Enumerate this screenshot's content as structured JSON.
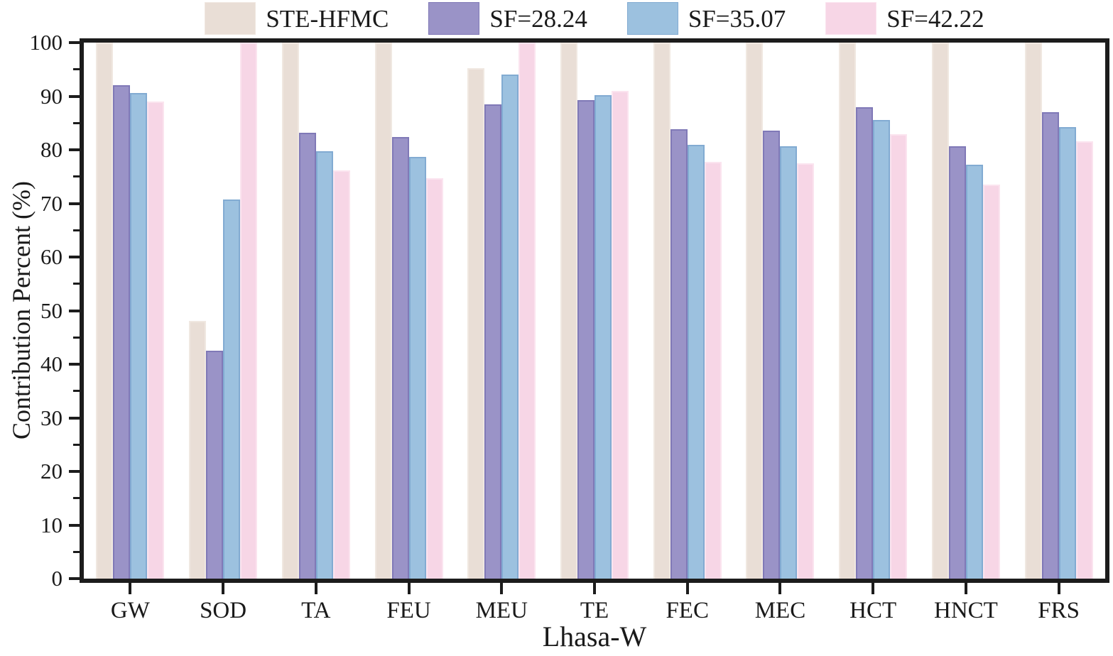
{
  "chart_data": {
    "type": "bar",
    "title": "",
    "xlabel": "Lhasa-W",
    "ylabel": "Contribution Percent (%)",
    "ylim": [
      0,
      100
    ],
    "ytick_major_step": 10,
    "ytick_minor_step": 5,
    "grid": false,
    "legend_position": "top",
    "frame_color": "#1c1c1c",
    "categories": [
      "GW",
      "SOD",
      "TA",
      "FEU",
      "MEU",
      "TE",
      "FEC",
      "MEC",
      "HCT",
      "HNCT",
      "FRS"
    ],
    "series": [
      {
        "name": "STE-HFMC",
        "fill": "#e9ded6",
        "edge": "#f0e8e1",
        "values": [
          100,
          48.1,
          100,
          100,
          95.3,
          100,
          100,
          100,
          100,
          100,
          100
        ]
      },
      {
        "name": "SF=28.24",
        "fill": "#9a93c7",
        "edge": "#8079b7",
        "values": [
          92.1,
          42.5,
          83.2,
          82.4,
          88.5,
          89.3,
          83.8,
          83.6,
          87.9,
          80.7,
          87.0
        ]
      },
      {
        "name": "SF=35.07",
        "fill": "#9cc1df",
        "edge": "#82abd2",
        "values": [
          90.6,
          70.7,
          79.8,
          78.7,
          94.1,
          90.2,
          80.9,
          80.7,
          85.5,
          77.2,
          84.3
        ]
      },
      {
        "name": "SF=42.22",
        "fill": "#f7d6e6",
        "edge": "#fbe4ef",
        "values": [
          89.0,
          100,
          76.1,
          74.7,
          100,
          91.0,
          77.7,
          77.5,
          82.9,
          73.5,
          81.6
        ]
      }
    ]
  }
}
